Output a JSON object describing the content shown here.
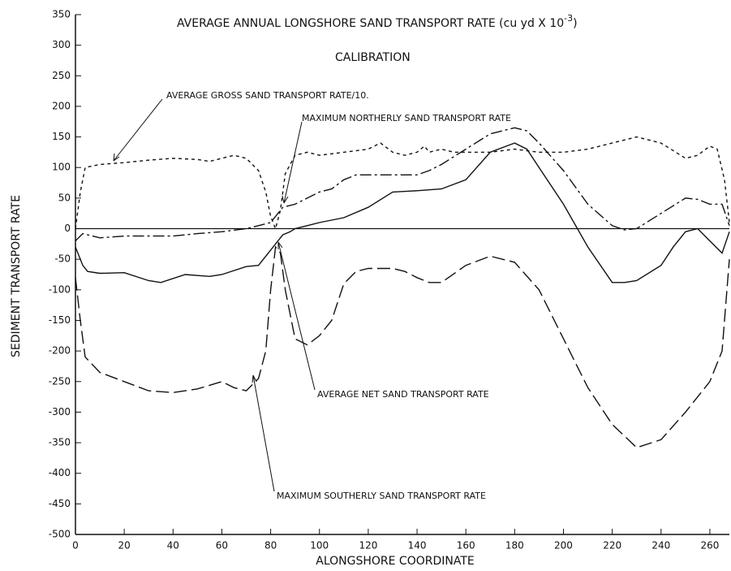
{
  "chart_data": {
    "type": "line",
    "title": "AVERAGE ANNUAL LONGSHORE SAND TRANSPORT RATE (cu yd X 10",
    "title_exponent": "-3",
    "title_close": ")",
    "subtitle": "CALIBRATION",
    "x_label": "ALONGSHORE COORDINATE",
    "y_label": "SEDIMENT TRANSPORT RATE",
    "xlim": [
      0,
      268
    ],
    "ylim": [
      -500,
      350
    ],
    "xticks": [
      0,
      20,
      40,
      60,
      80,
      100,
      120,
      140,
      160,
      180,
      200,
      220,
      240,
      260
    ],
    "yticks": [
      -500,
      -450,
      -400,
      -350,
      -300,
      -250,
      -200,
      -150,
      -100,
      -50,
      0,
      50,
      100,
      150,
      200,
      250,
      300,
      350
    ],
    "hline": 0,
    "series": [
      {
        "name": "AVERAGE GROSS SAND TRANSPORT RATE/10.",
        "color": "#111111",
        "dash": "4 4",
        "x": [
          0,
          2,
          4,
          10,
          20,
          30,
          40,
          50,
          55,
          60,
          65,
          70,
          75,
          78,
          80,
          82,
          84,
          86,
          90,
          95,
          100,
          110,
          120,
          125,
          130,
          135,
          140,
          143,
          145,
          150,
          155,
          160,
          170,
          180,
          190,
          200,
          210,
          220,
          230,
          240,
          250,
          255,
          260,
          263,
          266,
          268
        ],
        "values": [
          0,
          60,
          100,
          105,
          108,
          112,
          115,
          113,
          110,
          115,
          120,
          115,
          95,
          60,
          20,
          0,
          30,
          90,
          120,
          125,
          120,
          125,
          130,
          140,
          125,
          120,
          125,
          135,
          125,
          130,
          125,
          125,
          125,
          130,
          125,
          125,
          130,
          140,
          150,
          140,
          115,
          120,
          135,
          130,
          80,
          10
        ]
      },
      {
        "name": "MAXIMUM NORTHERLY SAND TRANSPORT RATE",
        "color": "#111111",
        "dash": "14 4 3 4",
        "x": [
          0,
          3,
          5,
          10,
          20,
          30,
          40,
          50,
          60,
          70,
          75,
          80,
          83,
          85,
          90,
          95,
          100,
          105,
          110,
          115,
          120,
          130,
          140,
          145,
          150,
          160,
          170,
          180,
          185,
          190,
          200,
          210,
          220,
          225,
          230,
          240,
          250,
          255,
          260,
          265,
          268
        ],
        "values": [
          -20,
          -8,
          -10,
          -15,
          -12,
          -12,
          -12,
          -8,
          -5,
          0,
          5,
          10,
          25,
          35,
          40,
          50,
          60,
          65,
          80,
          88,
          88,
          88,
          88,
          95,
          105,
          130,
          155,
          165,
          160,
          140,
          95,
          40,
          5,
          -2,
          0,
          25,
          50,
          48,
          40,
          40,
          5
        ]
      },
      {
        "name": "AVERAGE NET SAND TRANSPORT RATE",
        "color": "#111111",
        "dash": "none",
        "x": [
          0,
          3,
          5,
          10,
          20,
          30,
          35,
          45,
          55,
          60,
          70,
          75,
          80,
          83,
          85,
          88,
          90,
          95,
          100,
          110,
          120,
          130,
          140,
          150,
          160,
          170,
          180,
          185,
          190,
          200,
          210,
          220,
          225,
          230,
          240,
          245,
          250,
          255,
          260,
          265,
          268
        ],
        "values": [
          -30,
          -60,
          -70,
          -73,
          -72,
          -85,
          -88,
          -75,
          -78,
          -75,
          -62,
          -60,
          -35,
          -20,
          -10,
          -5,
          0,
          5,
          10,
          18,
          35,
          60,
          62,
          65,
          80,
          125,
          140,
          130,
          100,
          40,
          -30,
          -88,
          -88,
          -85,
          -60,
          -30,
          -5,
          0,
          -20,
          -40,
          -5
        ]
      },
      {
        "name": "MAXIMUM SOUTHERLY SAND TRANSPORT RATE",
        "color": "#111111",
        "dash": "16 6",
        "x": [
          0,
          2,
          4,
          10,
          20,
          30,
          40,
          50,
          60,
          65,
          70,
          75,
          78,
          80,
          82,
          84,
          86,
          90,
          95,
          100,
          105,
          110,
          115,
          120,
          130,
          135,
          140,
          145,
          150,
          160,
          170,
          180,
          190,
          200,
          210,
          220,
          230,
          240,
          250,
          260,
          265,
          268
        ],
        "values": [
          -80,
          -150,
          -210,
          -235,
          -250,
          -265,
          -268,
          -262,
          -250,
          -260,
          -265,
          -245,
          -200,
          -100,
          -30,
          -40,
          -100,
          -180,
          -190,
          -175,
          -150,
          -90,
          -70,
          -65,
          -65,
          -70,
          -80,
          -88,
          -88,
          -60,
          -45,
          -55,
          -100,
          -180,
          -260,
          -320,
          -358,
          -345,
          -300,
          -250,
          -200,
          -50
        ]
      }
    ]
  }
}
